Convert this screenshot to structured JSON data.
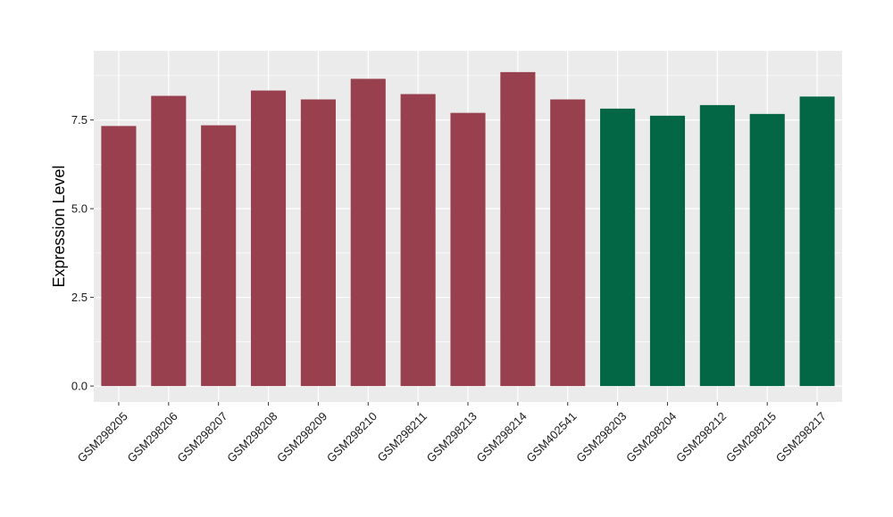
{
  "chart_data": {
    "type": "bar",
    "title": "",
    "xlabel": "",
    "ylabel": "Expression Level",
    "ylim": [
      -0.45,
      9.45
    ],
    "yticks": [
      0.0,
      2.5,
      5.0,
      7.5
    ],
    "ytick_labels": [
      "0.0",
      "2.5",
      "5.0",
      "7.5"
    ],
    "grid": true,
    "legend": "none",
    "panel_background": "#ebebeb",
    "grid_color": "#ffffff",
    "categories": [
      "GSM298205",
      "GSM298206",
      "GSM298207",
      "GSM298208",
      "GSM298209",
      "GSM298210",
      "GSM298211",
      "GSM298213",
      "GSM298214",
      "GSM402541",
      "GSM298203",
      "GSM298204",
      "GSM298212",
      "GSM298215",
      "GSM298217"
    ],
    "values": [
      7.33,
      8.18,
      7.35,
      8.33,
      8.08,
      8.66,
      8.23,
      7.7,
      8.85,
      8.08,
      7.82,
      7.62,
      7.92,
      7.67,
      8.16
    ],
    "bar_colors": [
      "#98404e",
      "#98404e",
      "#98404e",
      "#98404e",
      "#98404e",
      "#98404e",
      "#98404e",
      "#98404e",
      "#98404e",
      "#98404e",
      "#036644",
      "#036644",
      "#036644",
      "#036644",
      "#036644"
    ]
  }
}
